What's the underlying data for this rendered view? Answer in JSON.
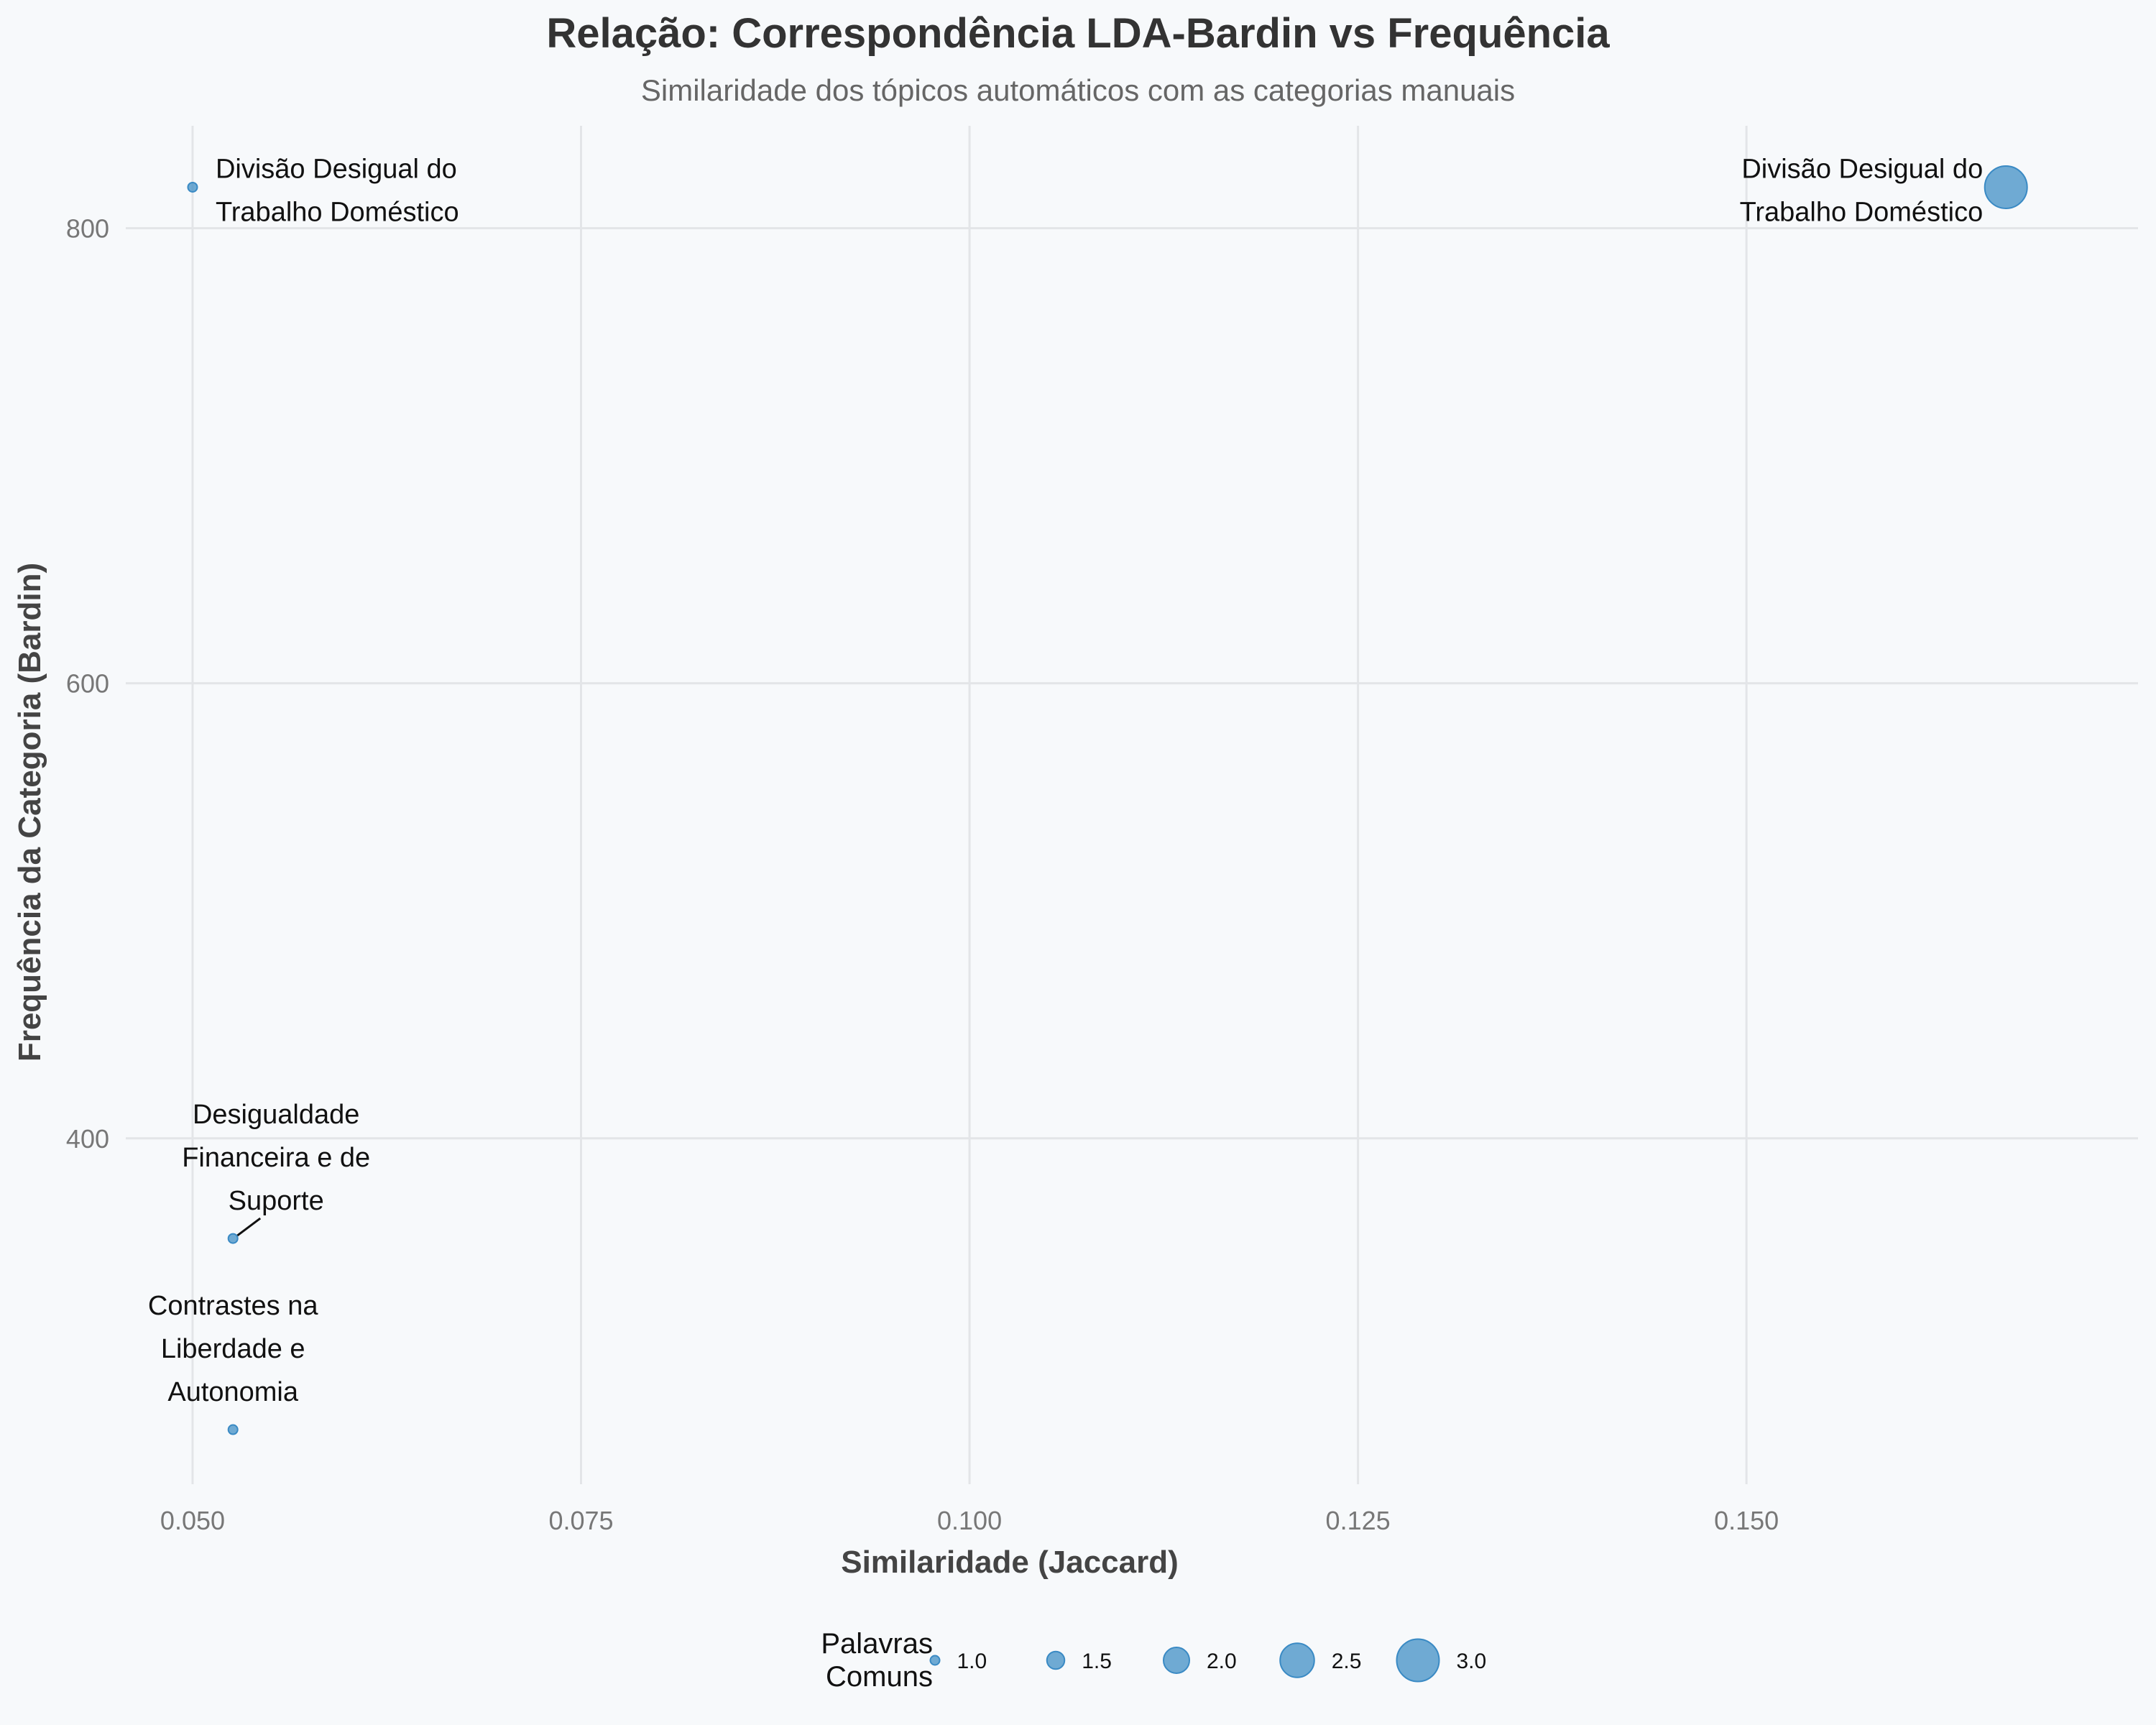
{
  "chart_data": {
    "type": "scatter",
    "title": "Relação: Correspondência LDA-Bardin vs Frequência",
    "subtitle": "Similaridade dos tópicos automáticos com as categorias manuais",
    "xlabel": "Similaridade (Jaccard)",
    "ylabel": "Frequência da Categoria (Bardin)",
    "xlim": [
      0.0457,
      0.1752
    ],
    "ylim": [
      248,
      845
    ],
    "x_ticks": [
      "0.050",
      "0.075",
      "0.100",
      "0.125",
      "0.150"
    ],
    "y_ticks": [
      "400",
      "600",
      "800"
    ],
    "grid": true,
    "colors": {
      "point": "#3a8ac4",
      "background": "#f7f9fb",
      "grid": "#e3e5e8"
    },
    "points": [
      {
        "x": 0.05,
        "y": 818,
        "size": 1,
        "label_lines": [
          "Divisão Desigual do",
          "Trabalho Doméstico"
        ]
      },
      {
        "x": 0.1667,
        "y": 818,
        "size": 3,
        "label_lines": [
          "Divisão Desigual do",
          "Trabalho Doméstico"
        ]
      },
      {
        "x": 0.0526,
        "y": 356,
        "size": 1,
        "label_lines": [
          "Desigualdade",
          "Financeira e de",
          "Suporte"
        ]
      },
      {
        "x": 0.0526,
        "y": 272,
        "size": 1,
        "label_lines": [
          "Contrastes na",
          "Liberdade e",
          "Autonomia"
        ]
      }
    ],
    "legend": {
      "title_lines": [
        "Palavras",
        "Comuns"
      ],
      "position": "bottom",
      "entries": [
        {
          "value": 1.0,
          "label": "1.0"
        },
        {
          "value": 1.5,
          "label": "1.5"
        },
        {
          "value": 2.0,
          "label": "2.0"
        },
        {
          "value": 2.5,
          "label": "2.5"
        },
        {
          "value": 3.0,
          "label": "3.0"
        }
      ]
    }
  }
}
